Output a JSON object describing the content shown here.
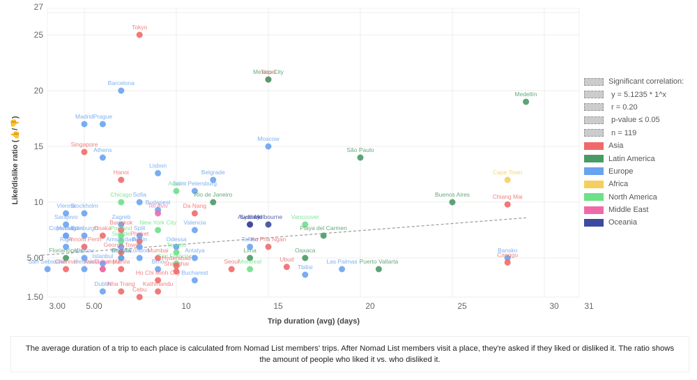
{
  "chart_data": {
    "type": "scatter",
    "title": "",
    "xlabel": "Trip duration (avg) (days)",
    "ylabel": "Like/dislike ratio (👍/👎)",
    "x_ticks": [
      "3.00",
      "5.00",
      "10",
      "15",
      "20",
      "25",
      "30",
      "31"
    ],
    "x_tick_values": [
      3,
      5,
      10,
      15,
      20,
      25,
      30,
      31
    ],
    "y_ticks": [
      "1.50",
      "5.00",
      "10",
      "15",
      "20",
      "25",
      "27"
    ],
    "y_tick_values": [
      1.5,
      5,
      10,
      15,
      20,
      25,
      27
    ],
    "xlim": [
      2.5,
      31.9
    ],
    "ylim": [
      1.5,
      27
    ],
    "grid": true,
    "legend_position": "right",
    "trendline": {
      "label": "Significant correlation:",
      "equation": "y = 5.1235 * 1^x",
      "r": "r = 0.20",
      "p": "p-value ≤ 0.05",
      "n": "n = 119",
      "start": [
        2.7,
        5.25
      ],
      "end": [
        29,
        8.6
      ],
      "color": "#999999"
    },
    "regions": [
      {
        "name": "Asia",
        "color": "#f06a6a"
      },
      {
        "name": "Latin America",
        "color": "#4a9a66"
      },
      {
        "name": "Europe",
        "color": "#6aa3ef"
      },
      {
        "name": "Africa",
        "color": "#f5cf5e"
      },
      {
        "name": "North America",
        "color": "#6ee088"
      },
      {
        "name": "Middle East",
        "color": "#f06aaa"
      },
      {
        "name": "Oceania",
        "color": "#3d4aa0"
      }
    ],
    "points": [
      {
        "name": "Tokyo",
        "region": "Asia",
        "x": 8,
        "y": 25
      },
      {
        "name": "Barcelona",
        "region": "Europe",
        "x": 7,
        "y": 20
      },
      {
        "name": "Madrid",
        "region": "Europe",
        "x": 5,
        "y": 17
      },
      {
        "name": "Prague",
        "region": "Europe",
        "x": 6,
        "y": 17
      },
      {
        "name": "Singapore",
        "region": "Asia",
        "x": 5,
        "y": 14.5
      },
      {
        "name": "Athens",
        "region": "Europe",
        "x": 6,
        "y": 14
      },
      {
        "name": "Taipei",
        "region": "Asia",
        "x": 15,
        "y": 21
      },
      {
        "name": "Mexico City",
        "region": "Latin America",
        "x": 15,
        "y": 21
      },
      {
        "name": "Medellín",
        "region": "Latin America",
        "x": 29,
        "y": 19
      },
      {
        "name": "Moscow",
        "region": "Europe",
        "x": 15,
        "y": 15
      },
      {
        "name": "São Paulo",
        "region": "Latin America",
        "x": 20,
        "y": 14
      },
      {
        "name": "Hanoi",
        "region": "Asia",
        "x": 7,
        "y": 12
      },
      {
        "name": "Lisbon",
        "region": "Europe",
        "x": 9,
        "y": 12.6
      },
      {
        "name": "Belgrade",
        "region": "Europe",
        "x": 12,
        "y": 12
      },
      {
        "name": "Austin",
        "region": "North America",
        "x": 10,
        "y": 11
      },
      {
        "name": "Saint Petersburg",
        "region": "Europe",
        "x": 11,
        "y": 11
      },
      {
        "name": "Rio de Janeiro",
        "region": "Latin America",
        "x": 12,
        "y": 10
      },
      {
        "name": "Chicago",
        "region": "North America",
        "x": 7,
        "y": 10
      },
      {
        "name": "Sofia",
        "region": "Europe",
        "x": 8,
        "y": 10
      },
      {
        "name": "Budapest",
        "region": "Europe",
        "x": 9,
        "y": 9.3
      },
      {
        "name": "Tel Aviv",
        "region": "Middle East",
        "x": 9,
        "y": 9
      },
      {
        "name": "Da Nang",
        "region": "Asia",
        "x": 11,
        "y": 9
      },
      {
        "name": "Cape Town",
        "region": "Africa",
        "x": 28,
        "y": 12
      },
      {
        "name": "Buenos Aires",
        "region": "Latin America",
        "x": 25,
        "y": 10
      },
      {
        "name": "Chiang Mai",
        "region": "Asia",
        "x": 28,
        "y": 9.8
      },
      {
        "name": "Bansko",
        "region": "Europe",
        "x": 28,
        "y": 5
      },
      {
        "name": "Canggu",
        "region": "Asia",
        "x": 28,
        "y": 4.6
      },
      {
        "name": "Vienna",
        "region": "Europe",
        "x": 4,
        "y": 9
      },
      {
        "name": "Stockholm",
        "region": "Europe",
        "x": 5,
        "y": 9
      },
      {
        "name": "Sarajevo",
        "region": "Europe",
        "x": 4,
        "y": 8
      },
      {
        "name": "Munich",
        "region": "Europe",
        "x": 4,
        "y": 7
      },
      {
        "name": "Copenhagen",
        "region": "Europe",
        "x": 4,
        "y": 7
      },
      {
        "name": "Edinburgh",
        "region": "Europe",
        "x": 5,
        "y": 7
      },
      {
        "name": "Osaka",
        "region": "Asia",
        "x": 6,
        "y": 7
      },
      {
        "name": "Riga",
        "region": "Europe",
        "x": 4,
        "y": 6
      },
      {
        "name": "Phnom Penh",
        "region": "Asia",
        "x": 5,
        "y": 6
      },
      {
        "name": "Florianópolis",
        "region": "Latin America",
        "x": 4,
        "y": 5
      },
      {
        "name": "Krakow",
        "region": "Europe",
        "x": 5,
        "y": 5
      },
      {
        "name": "San Sebastián",
        "region": "Europe",
        "x": 3,
        "y": 4
      },
      {
        "name": "Chennai",
        "region": "Asia",
        "x": 4,
        "y": 4
      },
      {
        "name": "Helsinki",
        "region": "Europe",
        "x": 5,
        "y": 4
      },
      {
        "name": "Zagreb",
        "region": "Europe",
        "x": 7,
        "y": 8
      },
      {
        "name": "Bangkok",
        "region": "Asia",
        "x": 7,
        "y": 7.5
      },
      {
        "name": "Portland",
        "region": "North America",
        "x": 7,
        "y": 7
      },
      {
        "name": "Split",
        "region": "Europe",
        "x": 8,
        "y": 7
      },
      {
        "name": "Phuket",
        "region": "Asia",
        "x": 8,
        "y": 6.5
      },
      {
        "name": "Seattle",
        "region": "North America",
        "x": 7,
        "y": 6.5
      },
      {
        "name": "Berlin",
        "region": "Europe",
        "x": 8,
        "y": 6
      },
      {
        "name": "Amsterdam",
        "region": "Europe",
        "x": 7,
        "y": 6
      },
      {
        "name": "George Town",
        "region": "Asia",
        "x": 7,
        "y": 5.5
      },
      {
        "name": "Bogotá",
        "region": "Latin America",
        "x": 7,
        "y": 5
      },
      {
        "name": "Warsaw",
        "region": "Europe",
        "x": 7,
        "y": 5
      },
      {
        "name": "London",
        "region": "Europe",
        "x": 8,
        "y": 5
      },
      {
        "name": "Istanbul",
        "region": "Europe",
        "x": 6,
        "y": 4.5
      },
      {
        "name": "Kuala Lumpur",
        "region": "Asia",
        "x": 6,
        "y": 4
      },
      {
        "name": "Dubai",
        "region": "Middle East",
        "x": 6,
        "y": 4
      },
      {
        "name": "Manila",
        "region": "Asia",
        "x": 7,
        "y": 4
      },
      {
        "name": "New York City",
        "region": "North America",
        "x": 9,
        "y": 7.5
      },
      {
        "name": "Valencia",
        "region": "Europe",
        "x": 11,
        "y": 7.5
      },
      {
        "name": "Odessa",
        "region": "Europe",
        "x": 10,
        "y": 6
      },
      {
        "name": "Toronto",
        "region": "North America",
        "x": 10,
        "y": 5.5
      },
      {
        "name": "Mumbai",
        "region": "Asia",
        "x": 9,
        "y": 5
      },
      {
        "name": "San Francisco",
        "region": "North America",
        "x": 10,
        "y": 4.5
      },
      {
        "name": "Antalya",
        "region": "Europe",
        "x": 11,
        "y": 5
      },
      {
        "name": "Brno",
        "region": "Europe",
        "x": 9,
        "y": 4
      },
      {
        "name": "Hyderabad",
        "region": "Asia",
        "x": 10,
        "y": 4.3
      },
      {
        "name": "Shanghai",
        "region": "Asia",
        "x": 10,
        "y": 3.8
      },
      {
        "name": "Ho Chi Minh City",
        "region": "Asia",
        "x": 9,
        "y": 3
      },
      {
        "name": "Bucharest",
        "region": "Europe",
        "x": 11,
        "y": 3
      },
      {
        "name": "Dublin",
        "region": "Europe",
        "x": 6,
        "y": 2
      },
      {
        "name": "Nha Trang",
        "region": "Asia",
        "x": 7,
        "y": 2
      },
      {
        "name": "Kathmandu",
        "region": "Asia",
        "x": 9,
        "y": 2
      },
      {
        "name": "Cebu",
        "region": "Asia",
        "x": 8,
        "y": 1.5
      },
      {
        "name": "Auckland",
        "region": "Oceania",
        "x": 14,
        "y": 8
      },
      {
        "name": "Sydney",
        "region": "Oceania",
        "x": 14,
        "y": 8
      },
      {
        "name": "Melbourne",
        "region": "Oceania",
        "x": 15,
        "y": 8
      },
      {
        "name": "Vancouver",
        "region": "North America",
        "x": 17,
        "y": 8
      },
      {
        "name": "Playa del Carmen",
        "region": "Latin America",
        "x": 18,
        "y": 7
      },
      {
        "name": "Tallinn",
        "region": "Europe",
        "x": 14,
        "y": 6
      },
      {
        "name": "Ko Pha Ngan",
        "region": "Asia",
        "x": 15,
        "y": 6
      },
      {
        "name": "Lima",
        "region": "Latin America",
        "x": 14,
        "y": 5
      },
      {
        "name": "Oaxaca",
        "region": "Latin America",
        "x": 17,
        "y": 5
      },
      {
        "name": "Seoul",
        "region": "Asia",
        "x": 13,
        "y": 4
      },
      {
        "name": "Montreal",
        "region": "North America",
        "x": 14,
        "y": 4
      },
      {
        "name": "Ubud",
        "region": "Asia",
        "x": 16,
        "y": 4.2
      },
      {
        "name": "Tbilisi",
        "region": "Europe",
        "x": 17,
        "y": 3.5
      },
      {
        "name": "Las Palmas",
        "region": "Europe",
        "x": 19,
        "y": 4
      },
      {
        "name": "Puerto Vallarta",
        "region": "Latin America",
        "x": 21,
        "y": 4
      }
    ]
  },
  "note": "The average duration of a trip to each place is calculated from Nomad List members' trips. After Nomad List members visit a place, they're asked if they liked or disliked it. The ratio shows the amount of people who liked it vs. who disliked it."
}
